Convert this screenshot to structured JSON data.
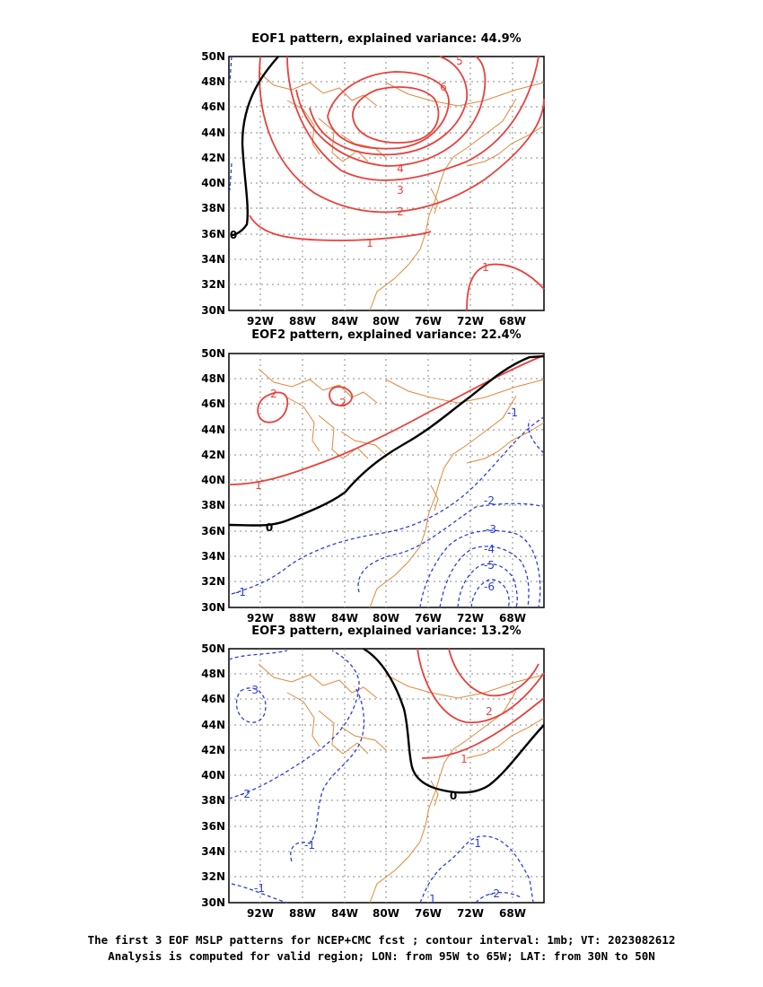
{
  "colors": {
    "positive": "#e8413c",
    "negative": "#2b3de0",
    "zero": "#000000",
    "coast": "#e0893a",
    "grid": "#8a8a8a"
  },
  "axes": {
    "lat_labels": [
      "50N",
      "48N",
      "46N",
      "44N",
      "42N",
      "40N",
      "38N",
      "36N",
      "34N",
      "32N",
      "30N"
    ],
    "lon_labels": [
      "92W",
      "88W",
      "84W",
      "80W",
      "76W",
      "72W",
      "68W"
    ]
  },
  "panels": [
    {
      "title": "EOF1 pattern, explained variance: 44.9%",
      "contour_labels": [
        "5",
        "6",
        "4",
        "3",
        "2",
        "1",
        "1",
        "0"
      ]
    },
    {
      "title": "EOF2 pattern, explained variance: 22.4%",
      "contour_labels": [
        "2",
        "2",
        "1",
        "-1",
        "-2",
        "-3",
        "-4",
        "-5",
        "-6",
        "-1",
        "0"
      ]
    },
    {
      "title": "EOF3 pattern, explained variance: 13.2%",
      "contour_labels": [
        "2",
        "1",
        "0",
        "-3",
        "-2",
        "-1",
        "-1",
        "-1",
        "-2",
        "1"
      ]
    }
  ],
  "caption": {
    "line1": "The first 3 EOF MSLP patterns for NCEP+CMC fcst ; contour interval: 1mb; VT: 2023082612",
    "line2": "Analysis is computed for valid region; LON: from 95W to 65W; LAT: from 30N to 50N"
  }
}
